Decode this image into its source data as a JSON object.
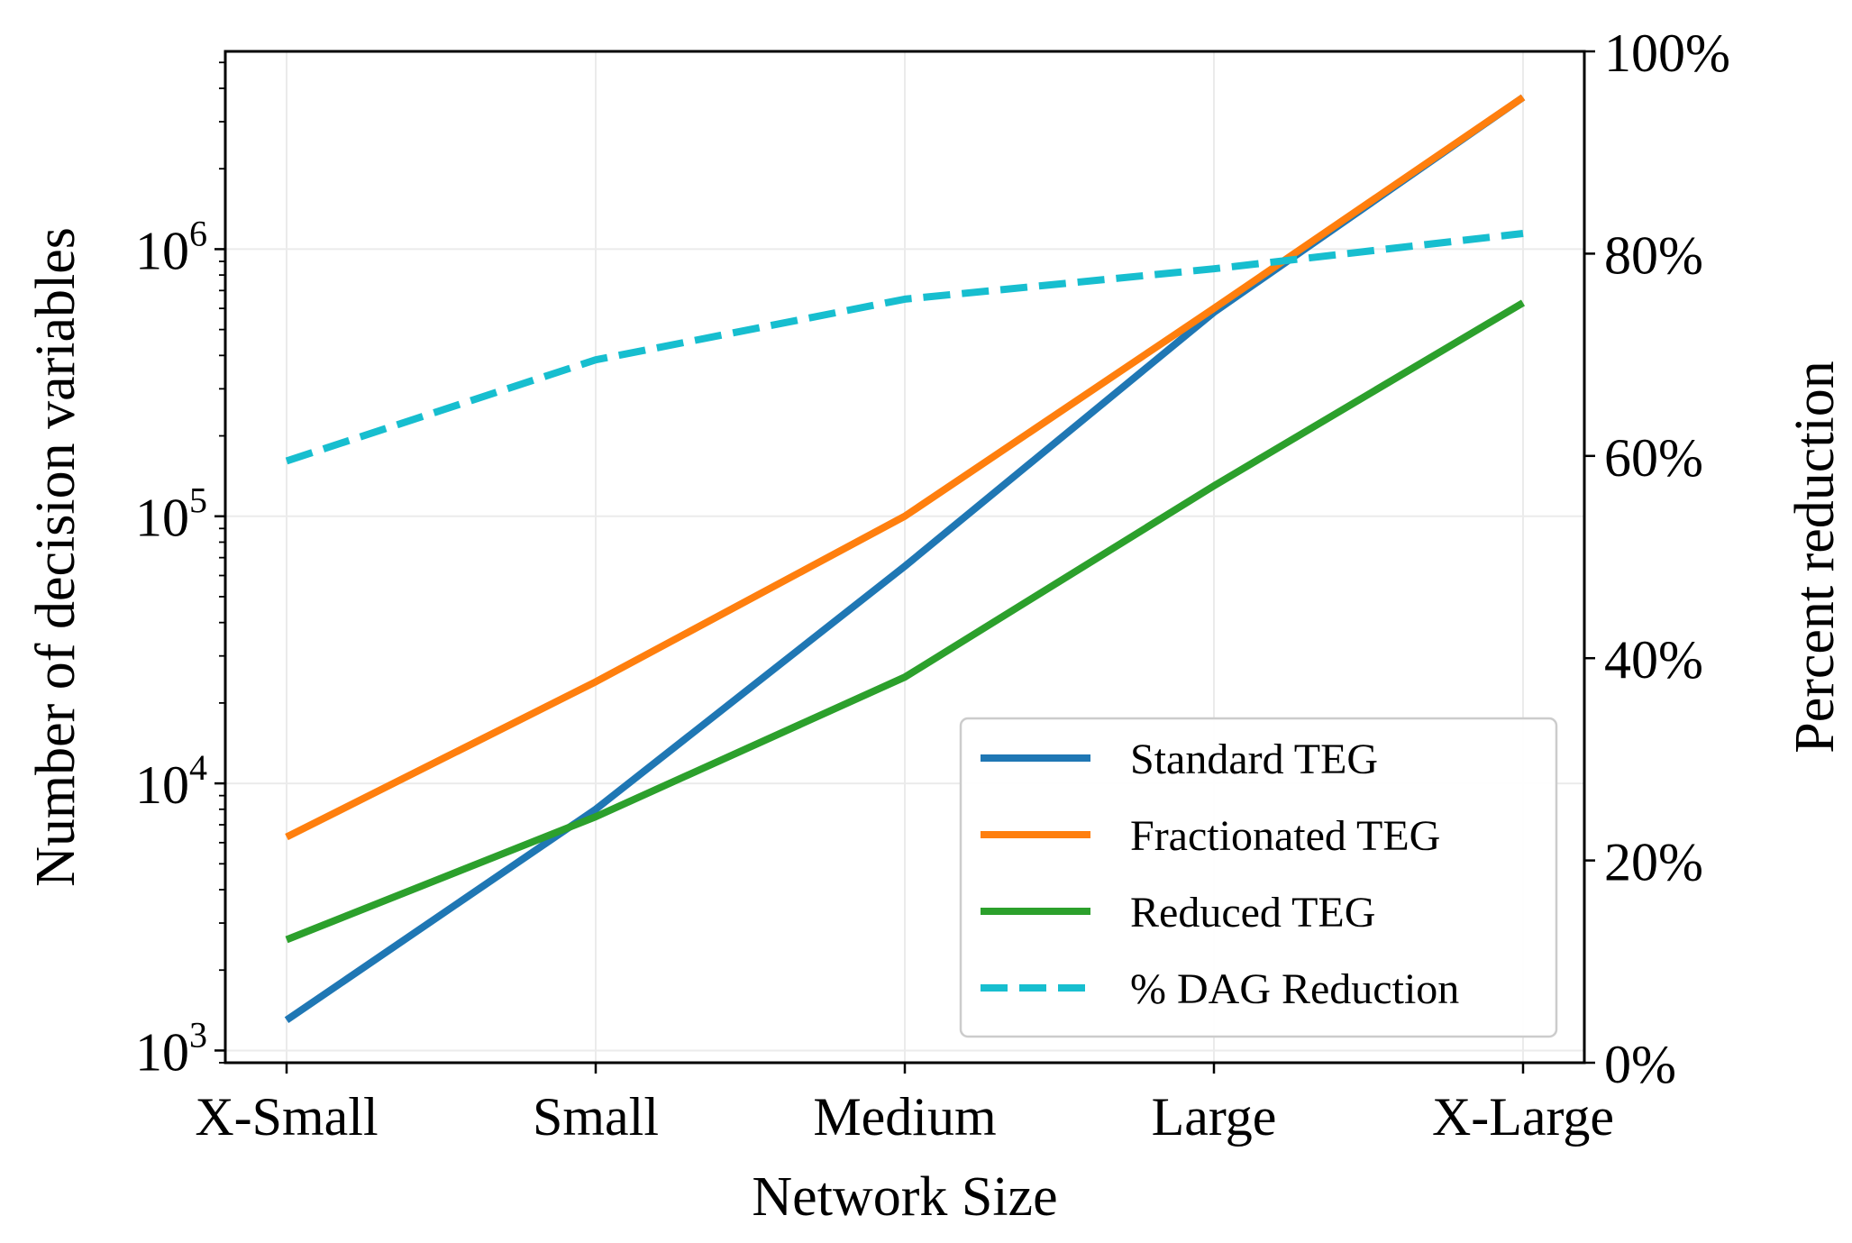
{
  "chart_data": {
    "type": "line",
    "categories": [
      "X-Small",
      "Small",
      "Medium",
      "Large",
      "X-Large"
    ],
    "xlabel": "Network Size",
    "ylabel": "Number of decision variables",
    "y2label": "Percent reduction",
    "yscale": "log",
    "ylim": [
      900,
      5500000
    ],
    "y_ticks": [
      {
        "value": 1000,
        "base": "10",
        "exp": "3"
      },
      {
        "value": 10000,
        "base": "10",
        "exp": "4"
      },
      {
        "value": 100000,
        "base": "10",
        "exp": "5"
      },
      {
        "value": 1000000,
        "base": "10",
        "exp": "6"
      }
    ],
    "y2lim": [
      0,
      100
    ],
    "y2_ticks": [
      "0%",
      "20%",
      "40%",
      "60%",
      "80%",
      "100%"
    ],
    "y2_tick_values": [
      0,
      20,
      40,
      60,
      80,
      100
    ],
    "grid": true,
    "legend_position": "lower-right",
    "series": [
      {
        "name": "Standard TEG",
        "axis": "left",
        "color": "#1f77b4",
        "style": "solid",
        "values": [
          1300,
          8000,
          65000,
          580000,
          3700000
        ]
      },
      {
        "name": "Fractionated TEG",
        "axis": "left",
        "color": "#ff7f0e",
        "style": "solid",
        "values": [
          6300,
          24000,
          100000,
          600000,
          3700000
        ]
      },
      {
        "name": "Reduced TEG",
        "axis": "left",
        "color": "#2ca02c",
        "style": "solid",
        "values": [
          2600,
          7500,
          25000,
          130000,
          630000
        ]
      },
      {
        "name": "% DAG Reduction",
        "axis": "right",
        "color": "#17becf",
        "style": "dashed",
        "values": [
          59.5,
          69.5,
          75.5,
          78.5,
          82
        ]
      }
    ]
  }
}
